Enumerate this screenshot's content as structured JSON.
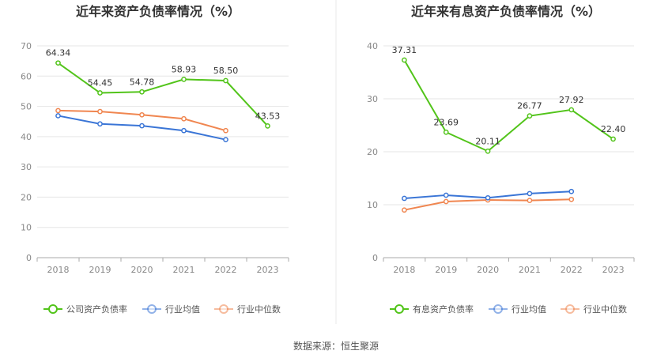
{
  "chart_data": [
    {
      "type": "line",
      "title": "近年来资产负债率情况（%）",
      "categories": [
        "2018",
        "2019",
        "2020",
        "2021",
        "2022",
        "2023"
      ],
      "ylim": [
        0,
        70
      ],
      "yticks": [
        0,
        10,
        20,
        30,
        40,
        50,
        60,
        70
      ],
      "grid": true,
      "legend_position": "bottom",
      "series": [
        {
          "name": "公司资产负债率",
          "color": "#52c41a",
          "values": [
            64.34,
            54.45,
            54.78,
            58.93,
            58.5,
            43.53
          ],
          "labels": [
            "64.34",
            "54.45",
            "54.78",
            "58.93",
            "58.50",
            "43.53"
          ]
        },
        {
          "name": "行业均值",
          "color": "#3a75d6",
          "values": [
            46.9,
            44.2,
            43.6,
            42.0,
            39.0,
            null
          ]
        },
        {
          "name": "行业中位数",
          "color": "#f08650",
          "values": [
            48.6,
            48.3,
            47.2,
            45.9,
            42.0,
            null
          ]
        }
      ]
    },
    {
      "type": "line",
      "title": "近年来有息资产负债率情况（%）",
      "categories": [
        "2018",
        "2019",
        "2020",
        "2021",
        "2022",
        "2023"
      ],
      "ylim": [
        0,
        40
      ],
      "yticks": [
        0,
        10,
        20,
        30,
        40
      ],
      "grid": true,
      "legend_position": "bottom",
      "series": [
        {
          "name": "有息资产负债率",
          "color": "#52c41a",
          "values": [
            37.31,
            23.69,
            20.11,
            26.77,
            27.92,
            22.4
          ],
          "labels": [
            "37.31",
            "23.69",
            "20.11",
            "26.77",
            "27.92",
            "22.40"
          ]
        },
        {
          "name": "行业均值",
          "color": "#3a75d6",
          "values": [
            11.2,
            11.8,
            11.3,
            12.1,
            12.5,
            null
          ]
        },
        {
          "name": "行业中位数",
          "color": "#f08650",
          "values": [
            9.0,
            10.6,
            10.9,
            10.8,
            11.0,
            null
          ]
        }
      ]
    }
  ],
  "footer": {
    "source": "数据来源：恒生聚源"
  }
}
